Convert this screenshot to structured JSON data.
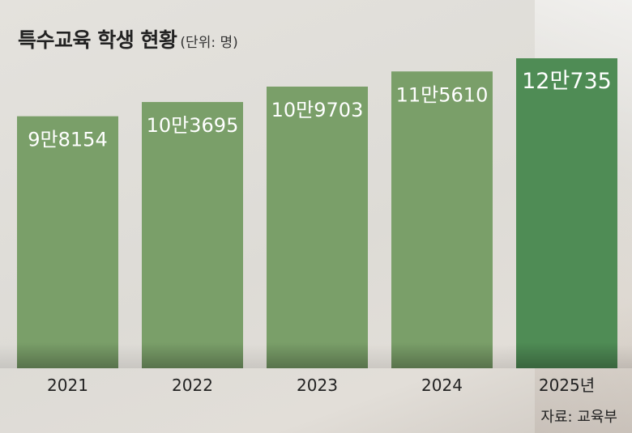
{
  "header": {
    "title": "특수교육 학생 현황",
    "unit": "(단위: 명)"
  },
  "chart_data": {
    "type": "bar",
    "title": "특수교육 학생 현황",
    "unit": "명",
    "categories": [
      "2021",
      "2022",
      "2023",
      "2024",
      "2025년"
    ],
    "values": [
      98154,
      103695,
      109703,
      115610,
      120735
    ],
    "value_labels": [
      "9만8154",
      "10만3695",
      "10만9703",
      "11만5610",
      "12만735"
    ],
    "ylim": [
      0,
      120735
    ],
    "grid": false,
    "legend": "none",
    "bar_color": "#7a9f69",
    "highlight_color": "#4f8c55",
    "highlight_index": 4
  },
  "source": "자료: 교육부"
}
